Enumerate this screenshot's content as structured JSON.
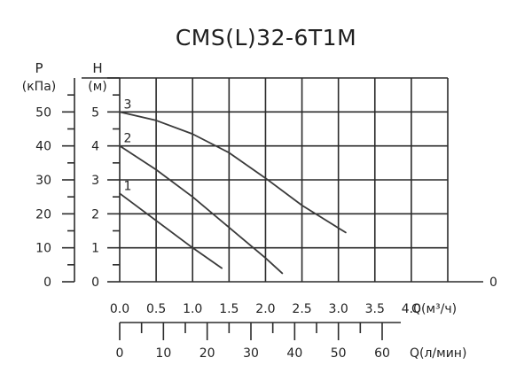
{
  "chart_data": {
    "type": "line",
    "title": "CMS(L)32-6T1M",
    "pressure_axis": {
      "label": "P",
      "unit": "(кПа)",
      "ticks": [
        "0",
        "10",
        "20",
        "30",
        "40",
        "50"
      ],
      "range": [
        0,
        60
      ]
    },
    "head_axis": {
      "label": "H",
      "unit": "(м)",
      "ticks": [
        "0",
        "1",
        "2",
        "3",
        "4",
        "5"
      ],
      "range": [
        0,
        6
      ]
    },
    "flow_m3h_axis": {
      "label": "Q(м³/ч)",
      "ticks": [
        "0.0",
        "0.5",
        "1.0",
        "1.5",
        "2.0",
        "2.5",
        "3.0",
        "3.5",
        "4.0"
      ],
      "extra_tick": "0",
      "range": [
        0,
        4.5
      ]
    },
    "flow_lmin_axis": {
      "label": "Q(л/мин)",
      "ticks": [
        "0",
        "10",
        "20",
        "30",
        "40",
        "50",
        "60"
      ]
    },
    "grid": true,
    "series": [
      {
        "name": "1",
        "x": [
          0.0,
          1.0,
          1.4
        ],
        "y": [
          2.6,
          1.0,
          0.4
        ]
      },
      {
        "name": "2",
        "x": [
          0.0,
          0.5,
          1.0,
          1.5,
          2.0,
          2.23
        ],
        "y": [
          4.0,
          3.3,
          2.5,
          1.6,
          0.7,
          0.25
        ]
      },
      {
        "name": "3",
        "x": [
          0.0,
          0.5,
          1.0,
          1.5,
          2.0,
          2.5,
          3.1
        ],
        "y": [
          5.0,
          4.75,
          4.35,
          3.8,
          3.05,
          2.25,
          1.45
        ]
      }
    ]
  }
}
